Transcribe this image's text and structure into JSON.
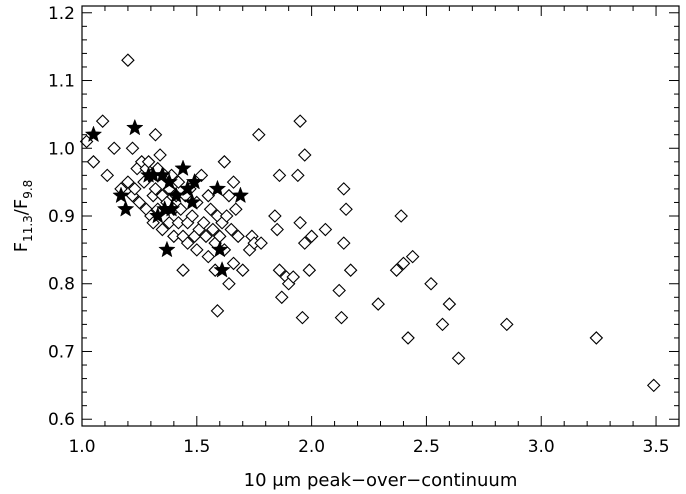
{
  "chart_data": {
    "type": "scatter",
    "title": "",
    "xlabel": "10 μm peak−over−continuum",
    "ylabel": "F11.3/F9.8",
    "ylabel_parts": {
      "main1": "F",
      "sub1": "11.3",
      "slash": "/",
      "main2": "F",
      "sub2": "9.8"
    },
    "xlim": [
      1.0,
      3.6
    ],
    "ylim": [
      0.59,
      1.21
    ],
    "x_ticks": [
      1.0,
      1.5,
      2.0,
      2.5,
      3.0,
      3.5
    ],
    "x_tick_labels": [
      "1.0",
      "1.5",
      "2.0",
      "2.5",
      "3.0",
      "3.5"
    ],
    "y_ticks": [
      0.6,
      0.7,
      0.8,
      0.9,
      1.0,
      1.1,
      1.2
    ],
    "y_tick_labels": [
      "0.6",
      "0.7",
      "0.8",
      "0.9",
      "1.0",
      "1.1",
      "1.2"
    ],
    "grid": false,
    "marker_color": "#000000",
    "series": [
      {
        "marker": "open-diamond",
        "points": [
          [
            1.02,
            1.01
          ],
          [
            1.05,
            0.98
          ],
          [
            1.09,
            1.04
          ],
          [
            1.11,
            0.96
          ],
          [
            1.2,
            1.13
          ],
          [
            1.14,
            1.0
          ],
          [
            1.17,
            0.94
          ],
          [
            1.2,
            0.95
          ],
          [
            1.22,
            1.0
          ],
          [
            1.22,
            0.93
          ],
          [
            1.23,
            0.94
          ],
          [
            1.24,
            0.97
          ],
          [
            1.25,
            0.92
          ],
          [
            1.26,
            0.98
          ],
          [
            1.27,
            0.95
          ],
          [
            1.28,
            0.97
          ],
          [
            1.28,
            0.91
          ],
          [
            1.29,
            0.98
          ],
          [
            1.3,
            0.96
          ],
          [
            1.3,
            0.9
          ],
          [
            1.31,
            0.93
          ],
          [
            1.31,
            0.89
          ],
          [
            1.32,
            1.02
          ],
          [
            1.32,
            0.94
          ],
          [
            1.33,
            0.97
          ],
          [
            1.33,
            0.91
          ],
          [
            1.34,
            0.99
          ],
          [
            1.35,
            0.93
          ],
          [
            1.35,
            0.88
          ],
          [
            1.36,
            0.96
          ],
          [
            1.37,
            0.92
          ],
          [
            1.38,
            0.89
          ],
          [
            1.38,
            0.94
          ],
          [
            1.39,
            0.96
          ],
          [
            1.4,
            0.91
          ],
          [
            1.4,
            0.87
          ],
          [
            1.41,
            0.93
          ],
          [
            1.42,
            0.89
          ],
          [
            1.42,
            0.95
          ],
          [
            1.43,
            0.91
          ],
          [
            1.44,
            0.87
          ],
          [
            1.44,
            0.82
          ],
          [
            1.45,
            0.93
          ],
          [
            1.46,
            0.89
          ],
          [
            1.46,
            0.86
          ],
          [
            1.47,
            0.94
          ],
          [
            1.48,
            0.9
          ],
          [
            1.49,
            0.87
          ],
          [
            1.5,
            0.92
          ],
          [
            1.5,
            0.85
          ],
          [
            1.51,
            0.88
          ],
          [
            1.52,
            0.96
          ],
          [
            1.53,
            0.89
          ],
          [
            1.54,
            0.87
          ],
          [
            1.55,
            0.93
          ],
          [
            1.55,
            0.84
          ],
          [
            1.56,
            0.91
          ],
          [
            1.57,
            0.88
          ],
          [
            1.58,
            0.86
          ],
          [
            1.58,
            0.82
          ],
          [
            1.59,
            0.9
          ],
          [
            1.59,
            0.76
          ],
          [
            1.6,
            0.87
          ],
          [
            1.61,
            0.89
          ],
          [
            1.62,
            0.98
          ],
          [
            1.62,
            0.85
          ],
          [
            1.63,
            0.9
          ],
          [
            1.64,
            0.93
          ],
          [
            1.64,
            0.8
          ],
          [
            1.65,
            0.88
          ],
          [
            1.66,
            0.95
          ],
          [
            1.66,
            0.83
          ],
          [
            1.67,
            0.91
          ],
          [
            1.68,
            0.87
          ],
          [
            1.7,
            0.82
          ],
          [
            1.73,
            0.85
          ],
          [
            1.74,
            0.87
          ],
          [
            1.75,
            0.86
          ],
          [
            1.77,
            1.02
          ],
          [
            1.78,
            0.86
          ],
          [
            1.84,
            0.9
          ],
          [
            1.85,
            0.88
          ],
          [
            1.86,
            0.96
          ],
          [
            1.86,
            0.82
          ],
          [
            1.87,
            0.78
          ],
          [
            1.89,
            0.81
          ],
          [
            1.9,
            0.8
          ],
          [
            1.92,
            0.81
          ],
          [
            1.94,
            0.96
          ],
          [
            1.95,
            1.04
          ],
          [
            1.95,
            0.89
          ],
          [
            1.96,
            0.75
          ],
          [
            1.97,
            0.99
          ],
          [
            1.97,
            0.86
          ],
          [
            1.99,
            0.82
          ],
          [
            2.0,
            0.87
          ],
          [
            2.06,
            0.88
          ],
          [
            2.12,
            0.79
          ],
          [
            2.13,
            0.75
          ],
          [
            2.14,
            0.86
          ],
          [
            2.14,
            0.94
          ],
          [
            2.15,
            0.91
          ],
          [
            2.17,
            0.82
          ],
          [
            2.29,
            0.77
          ],
          [
            2.37,
            0.82
          ],
          [
            2.39,
            0.9
          ],
          [
            2.4,
            0.83
          ],
          [
            2.42,
            0.72
          ],
          [
            2.44,
            0.84
          ],
          [
            2.52,
            0.8
          ],
          [
            2.57,
            0.74
          ],
          [
            2.6,
            0.77
          ],
          [
            2.64,
            0.69
          ],
          [
            2.85,
            0.74
          ],
          [
            3.24,
            0.72
          ],
          [
            3.49,
            0.65
          ]
        ]
      },
      {
        "marker": "filled-star",
        "points": [
          [
            1.05,
            1.02
          ],
          [
            1.17,
            0.93
          ],
          [
            1.19,
            0.91
          ],
          [
            1.23,
            1.03
          ],
          [
            1.29,
            0.96
          ],
          [
            1.31,
            0.96
          ],
          [
            1.33,
            0.9
          ],
          [
            1.35,
            0.96
          ],
          [
            1.36,
            0.91
          ],
          [
            1.37,
            0.85
          ],
          [
            1.38,
            0.95
          ],
          [
            1.39,
            0.91
          ],
          [
            1.41,
            0.93
          ],
          [
            1.44,
            0.97
          ],
          [
            1.46,
            0.94
          ],
          [
            1.48,
            0.92
          ],
          [
            1.49,
            0.95
          ],
          [
            1.59,
            0.94
          ],
          [
            1.6,
            0.85
          ],
          [
            1.61,
            0.82
          ],
          [
            1.69,
            0.93
          ]
        ]
      }
    ]
  }
}
